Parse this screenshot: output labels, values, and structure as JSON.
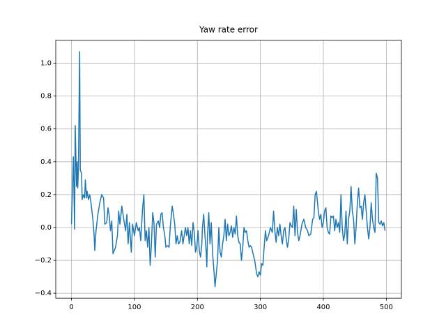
{
  "chart_data": {
    "type": "line",
    "title": "Yaw rate error",
    "color": "#1f77b4",
    "grid": true,
    "xlim": [
      -24.95,
      523.95
    ],
    "xticks": [
      0,
      100,
      200,
      300,
      400,
      500
    ],
    "ylim": [
      -0.43,
      1.14
    ],
    "yticks": [
      {
        "value": -0.4,
        "label": "−0.4"
      },
      {
        "value": -0.2,
        "label": "−0.2"
      },
      {
        "value": 0.0,
        "label": "0.0"
      },
      {
        "value": 0.2,
        "label": "0.2"
      },
      {
        "value": 0.4,
        "label": "0.4"
      },
      {
        "value": 0.6,
        "label": "0.6"
      },
      {
        "value": 0.8,
        "label": "0.8"
      },
      {
        "value": 1.0,
        "label": "1.0"
      }
    ],
    "x": [
      0,
      3,
      5,
      6,
      8,
      9,
      10,
      11,
      13,
      14,
      16,
      17,
      19,
      21,
      22,
      24,
      25,
      27,
      29,
      31,
      34,
      36,
      37,
      39,
      42,
      45,
      48,
      51,
      53,
      56,
      58,
      60,
      62,
      64,
      66,
      70,
      73,
      75,
      77,
      80,
      83,
      86,
      88,
      90,
      92,
      95,
      97,
      100,
      103,
      106,
      108,
      110,
      113,
      115,
      117,
      119,
      121,
      123,
      125,
      127,
      129,
      131,
      133,
      135,
      138,
      140,
      142,
      144,
      146,
      148,
      150,
      153,
      155,
      157,
      160,
      162,
      164,
      166,
      168,
      170,
      172,
      175,
      177,
      179,
      181,
      183,
      185,
      187,
      189,
      191,
      193,
      195,
      197,
      199,
      201,
      203,
      205,
      207,
      208,
      210,
      212,
      214,
      215,
      216,
      218,
      220,
      222,
      224,
      226,
      228,
      230,
      232,
      234,
      236,
      238,
      240,
      242,
      244,
      246,
      248,
      250,
      252,
      254,
      256,
      258,
      260,
      262,
      264,
      266,
      268,
      270,
      272,
      274,
      276,
      278,
      280,
      282,
      284,
      286,
      289,
      291,
      294,
      296,
      298,
      300,
      302,
      304,
      306,
      308,
      310,
      313,
      316,
      319,
      321,
      323,
      325,
      327,
      329,
      331,
      333,
      335,
      337,
      339,
      341,
      343,
      345,
      347,
      349,
      351,
      353,
      355,
      357,
      359,
      361,
      363,
      366,
      369,
      372,
      375,
      377,
      380,
      383,
      385,
      387,
      389,
      392,
      394,
      396,
      398,
      400,
      402,
      404,
      406,
      408,
      410,
      412,
      414,
      416,
      418,
      420,
      422,
      424,
      426,
      428,
      430,
      432,
      434,
      436,
      438,
      440,
      442,
      444,
      446,
      448,
      450,
      452,
      454,
      456,
      458,
      460,
      462,
      464,
      466,
      468,
      470,
      472,
      474,
      476,
      478,
      480,
      482,
      484,
      486,
      488,
      490,
      492,
      494,
      496,
      498
    ],
    "values": [
      0.02,
      0.43,
      -0.01,
      0.62,
      0.25,
      0.4,
      0.24,
      0.35,
      1.07,
      0.35,
      0.33,
      0.17,
      0.2,
      0.18,
      0.29,
      0.18,
      0.22,
      0.17,
      0.2,
      0.15,
      0.05,
      -0.05,
      -0.14,
      -0.02,
      0.08,
      0.15,
      0.2,
      0.18,
      0.02,
      0.03,
      0.12,
      0.07,
      -0.02,
      0.04,
      -0.16,
      -0.12,
      -0.05,
      0.1,
      0.02,
      0.13,
      0.05,
      -0.02,
      0.08,
      -0.1,
      0.03,
      -0.15,
      0.02,
      -0.05,
      0.03,
      -0.02,
      0.0,
      -0.08,
      0.12,
      0.2,
      -0.08,
      -0.02,
      -0.12,
      0.0,
      -0.23,
      -0.1,
      0.09,
      0.03,
      -0.18,
      0.02,
      0.04,
      0.0,
      0.08,
      0.09,
      0.0,
      -0.04,
      -0.12,
      -0.11,
      -0.12,
      0.01,
      0.13,
      0.08,
      0.02,
      -0.1,
      -0.05,
      -0.1,
      -0.09,
      -0.02,
      -0.1,
      -0.05,
      0.0,
      -0.05,
      0.0,
      -0.1,
      -0.02,
      -0.11,
      0.03,
      -0.03,
      -0.15,
      -0.12,
      -0.02,
      -0.14,
      -0.18,
      -0.1,
      0.0,
      0.08,
      -0.05,
      -0.15,
      -0.24,
      -0.05,
      0.09,
      -0.1,
      0.03,
      -0.15,
      -0.25,
      -0.36,
      -0.28,
      -0.2,
      0.0,
      -0.15,
      -0.18,
      -0.1,
      -0.05,
      0.05,
      -0.08,
      0.02,
      -0.05,
      -0.03,
      0.01,
      -0.06,
      0.0,
      -0.04,
      0.07,
      -0.05,
      -0.09,
      -0.1,
      -0.2,
      -0.12,
      0.0,
      -0.03,
      -0.02,
      -0.08,
      -0.12,
      -0.11,
      -0.12,
      -0.17,
      -0.2,
      -0.28,
      -0.3,
      -0.27,
      -0.29,
      -0.22,
      -0.23,
      -0.12,
      -0.02,
      -0.08,
      -0.05,
      0.0,
      -0.03,
      0.1,
      -0.02,
      -0.09,
      0.0,
      -0.05,
      0.02,
      -0.05,
      -0.1,
      -0.02,
      0.0,
      -0.07,
      -0.12,
      -0.07,
      0.03,
      0.01,
      0.0,
      0.13,
      -0.05,
      0.11,
      -0.03,
      -0.08,
      -0.05,
      0.02,
      0.05,
      0.0,
      -0.02,
      -0.05,
      -0.04,
      0.05,
      0.06,
      0.2,
      0.22,
      0.1,
      0.05,
      0.08,
      0.0,
      0.03,
      0.1,
      0.12,
      0.0,
      -0.03,
      -0.04,
      0.07,
      0.06,
      0.07,
      -0.02,
      0.05,
      0.0,
      0.03,
      -0.03,
      0.2,
      0.0,
      -0.08,
      -0.04,
      0.1,
      -0.1,
      0.05,
      0.1,
      0.25,
      0.1,
      0.05,
      -0.1,
      0.0,
      0.15,
      0.24,
      0.12,
      0.13,
      0.05,
      0.15,
      0.2,
      0.1,
      0.0,
      -0.07,
      0.0,
      0.15,
      0.05,
      0.0,
      -0.03,
      0.33,
      0.3,
      0.03,
      0.02,
      0.04,
      0.01,
      0.03,
      -0.02
    ]
  }
}
